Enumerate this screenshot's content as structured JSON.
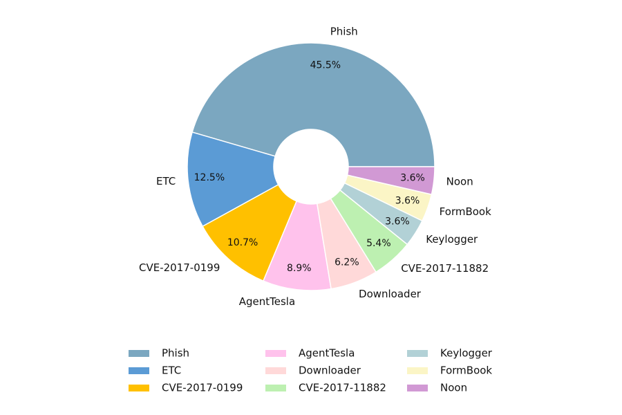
{
  "chart_data": {
    "type": "pie",
    "style": "donut",
    "start_angle_deg": 0,
    "direction": "counterclockwise",
    "categories": [
      "Phish",
      "ETC",
      "CVE-2017-0199",
      "AgentTesla",
      "Downloader",
      "CVE-2017-11882",
      "Keylogger",
      "FormBook",
      "Noon"
    ],
    "values": [
      45.5,
      12.5,
      10.7,
      8.9,
      6.2,
      5.4,
      3.6,
      3.6,
      3.6
    ],
    "value_labels": [
      "45.5%",
      "12.5%",
      "10.7%",
      "8.9%",
      "6.2%",
      "5.4%",
      "3.6%",
      "3.6%",
      "3.6%"
    ],
    "colors": [
      "#7ba7c0",
      "#5b9bd5",
      "#ffc000",
      "#ffc2ec",
      "#ffd9d9",
      "#bdf0b1",
      "#b2d1d6",
      "#fbf5c6",
      "#d199d4"
    ],
    "legend": {
      "placement": "bottom",
      "columns": 3,
      "entries": [
        "Phish",
        "ETC",
        "CVE-2017-0199",
        "AgentTesla",
        "Downloader",
        "CVE-2017-11882",
        "Keylogger",
        "FormBook",
        "Noon"
      ]
    }
  }
}
